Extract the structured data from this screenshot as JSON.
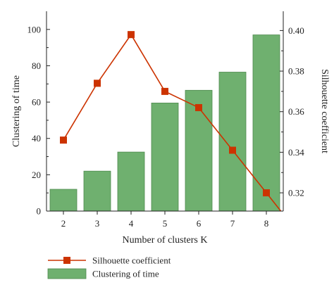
{
  "chart_data": {
    "type": "bar",
    "categories": [
      "2",
      "3",
      "4",
      "5",
      "6",
      "7",
      "8"
    ],
    "series": [
      {
        "name": "Clustering of time",
        "type": "bar",
        "axis": "left",
        "values": [
          12,
          22,
          32.5,
          59.5,
          66.5,
          76.5,
          97
        ],
        "color": "#6fb06f",
        "edge_color": "#4e8a4e"
      },
      {
        "name": "Silhouette coefficient",
        "type": "line",
        "axis": "right",
        "values": [
          0.346,
          0.374,
          0.398,
          0.37,
          0.362,
          0.341,
          0.32
        ],
        "color": "#cc3300",
        "marker": "square"
      }
    ],
    "xlabel": "Number of clusters K",
    "ylabel_left": "Clustering of time",
    "ylabel_right": "Silhouette coefficient",
    "ylim_left": [
      0,
      110
    ],
    "ylim_right": [
      0.311,
      0.4095
    ],
    "yticks_left": [
      "0",
      "20",
      "40",
      "60",
      "80",
      "100"
    ],
    "yticks_right": [
      "0.32",
      "0.34",
      "0.36",
      "0.38",
      "0.40"
    ],
    "grid": false,
    "legend_position": "bottom-left"
  }
}
